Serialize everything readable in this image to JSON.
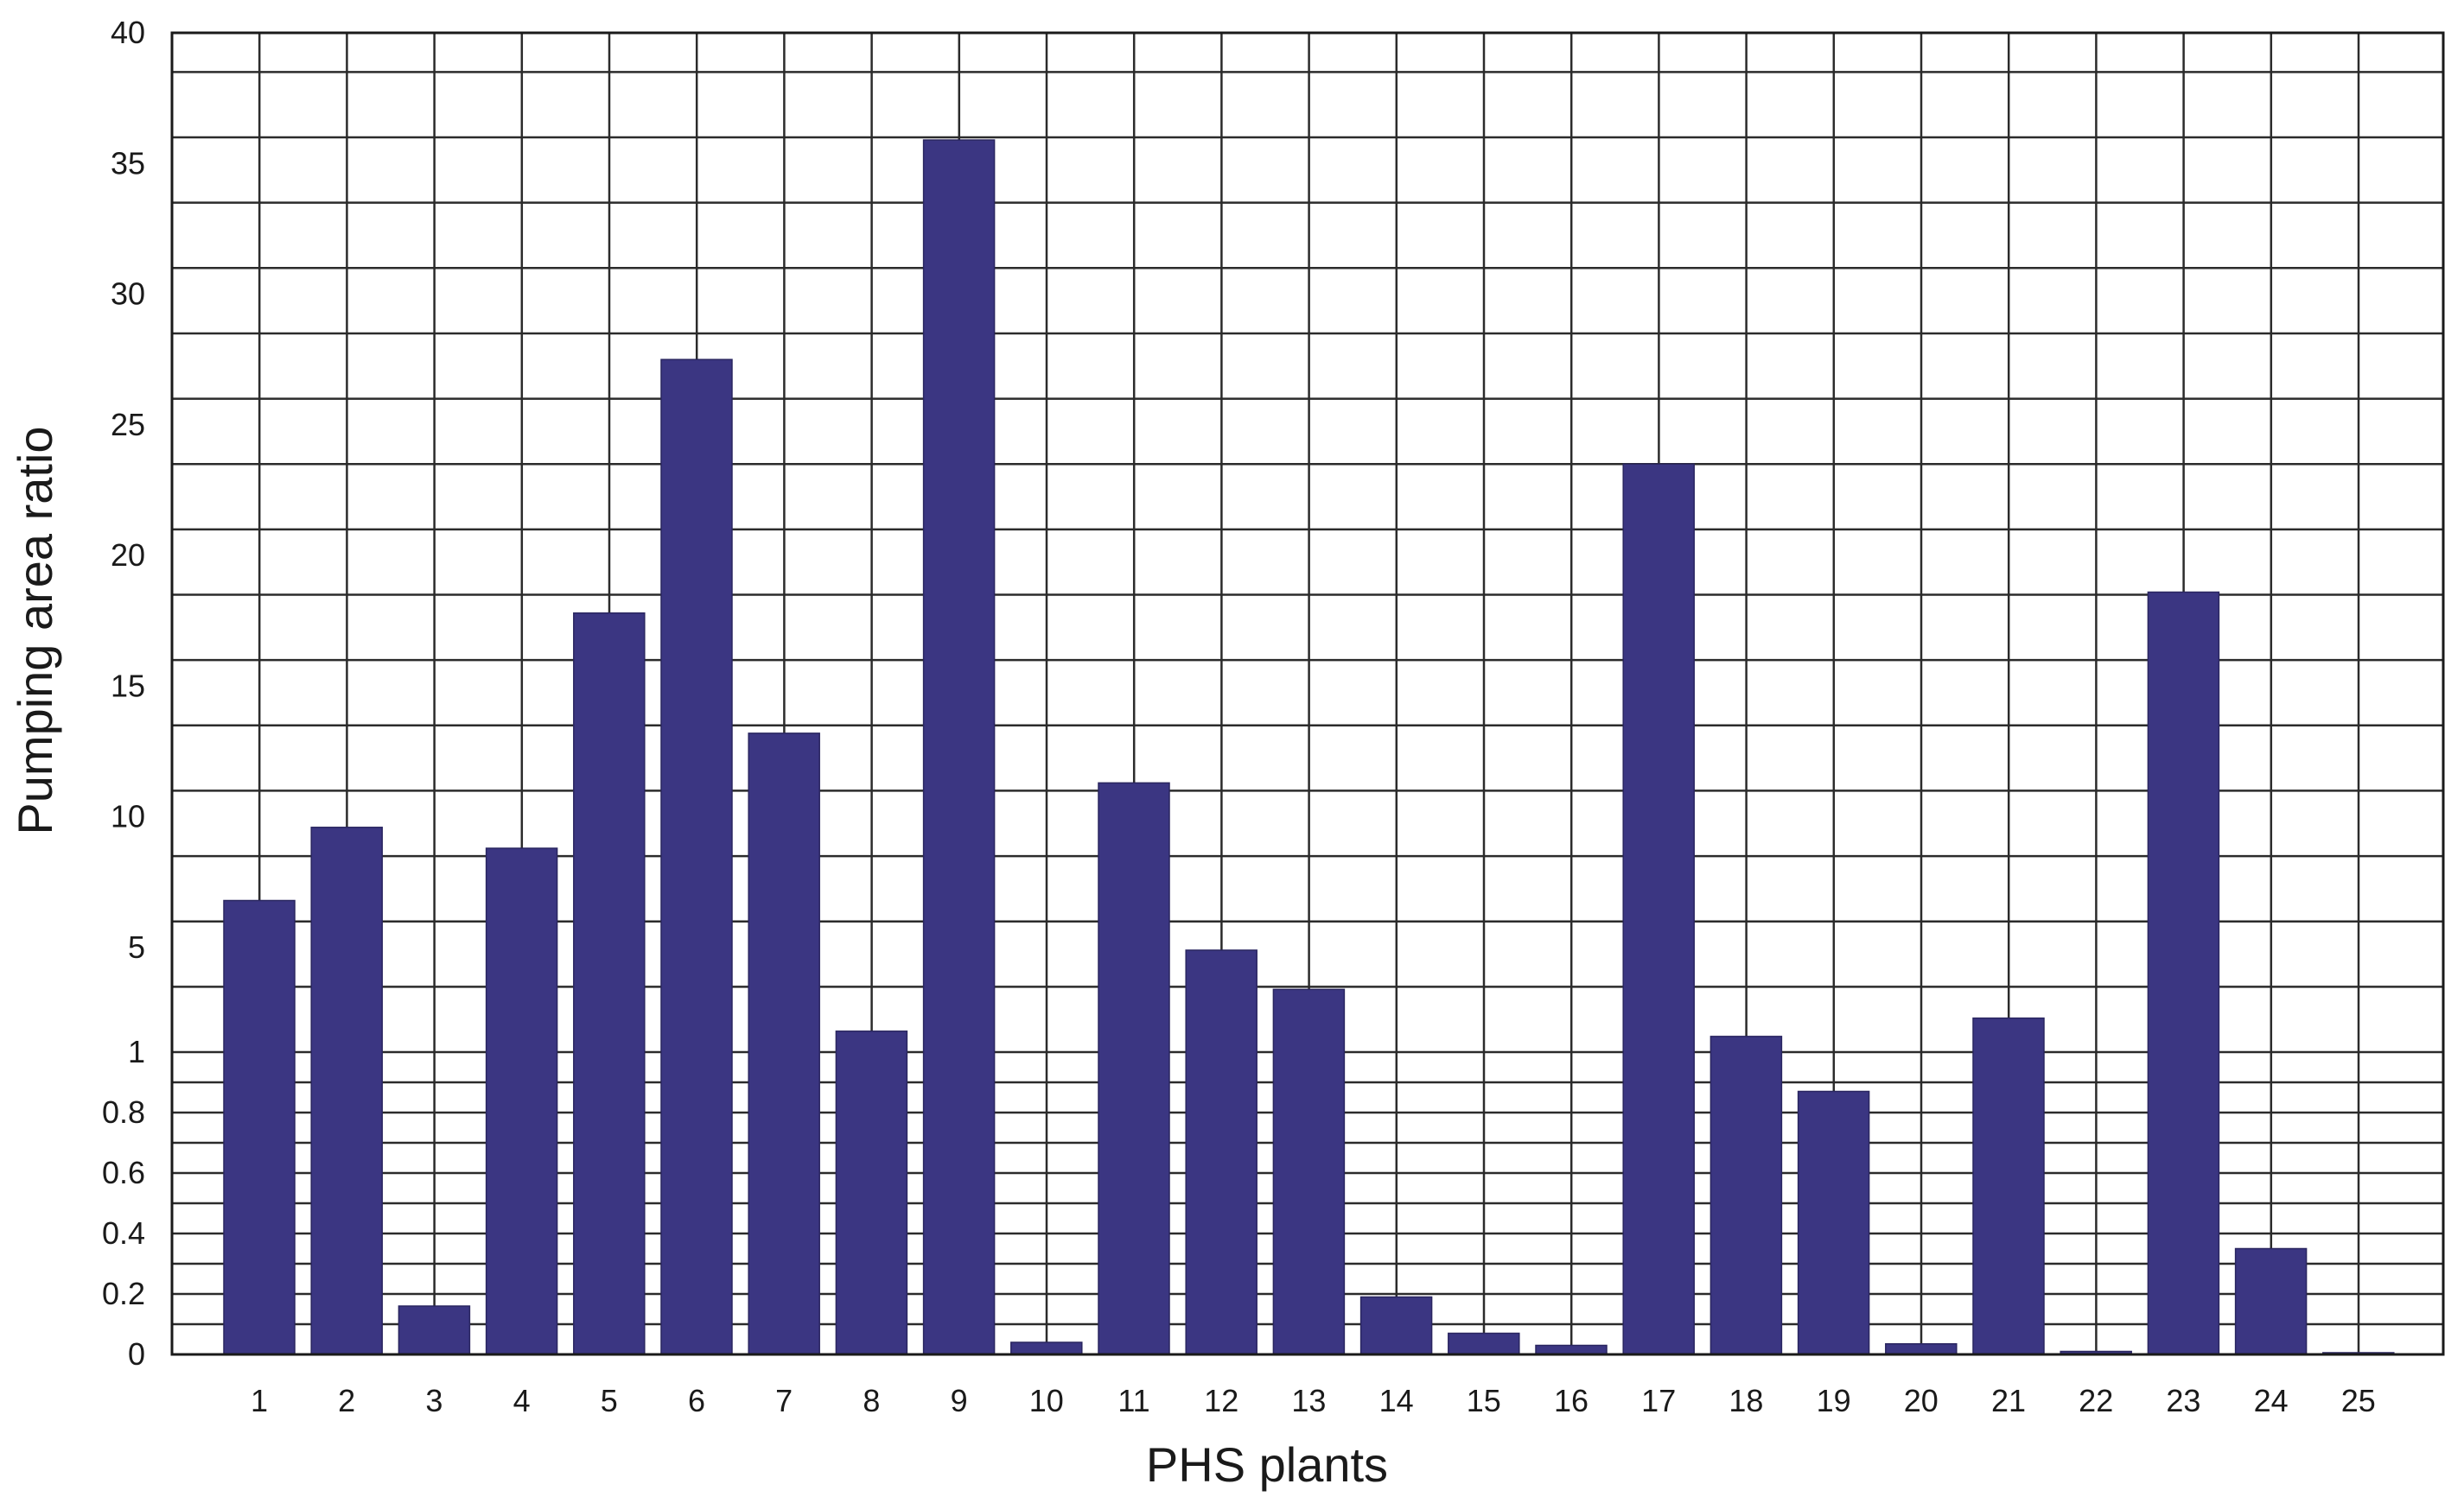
{
  "chart_data": {
    "type": "bar",
    "xlabel": "PHS plants",
    "ylabel": "Pumping area ratio",
    "categories": [
      "1",
      "2",
      "3",
      "4",
      "5",
      "6",
      "7",
      "8",
      "9",
      "10",
      "11",
      "12",
      "13",
      "14",
      "15",
      "16",
      "17",
      "18",
      "19",
      "20",
      "21",
      "22",
      "23",
      "24",
      "25"
    ],
    "values": [
      6.8,
      9.6,
      0.16,
      8.8,
      17.8,
      27.5,
      13.2,
      1.8,
      35.9,
      0.04,
      11.3,
      4.9,
      3.4,
      0.19,
      0.07,
      0.03,
      23.5,
      1.6,
      0.87,
      0.035,
      2.3,
      0.01,
      18.6,
      0.35,
      0.005
    ],
    "y_ticks": [
      "0",
      "0.2",
      "0.4",
      "0.6",
      "0.8",
      "1",
      "5",
      "10",
      "15",
      "20",
      "25",
      "30",
      "35",
      "40"
    ],
    "y_scale": "piecewise-linear: 0 to 1 in the lower segment, 1 to 40 in the upper segment",
    "ylim": [
      0,
      40
    ],
    "grid": true,
    "bar_color": "#3b3682"
  }
}
